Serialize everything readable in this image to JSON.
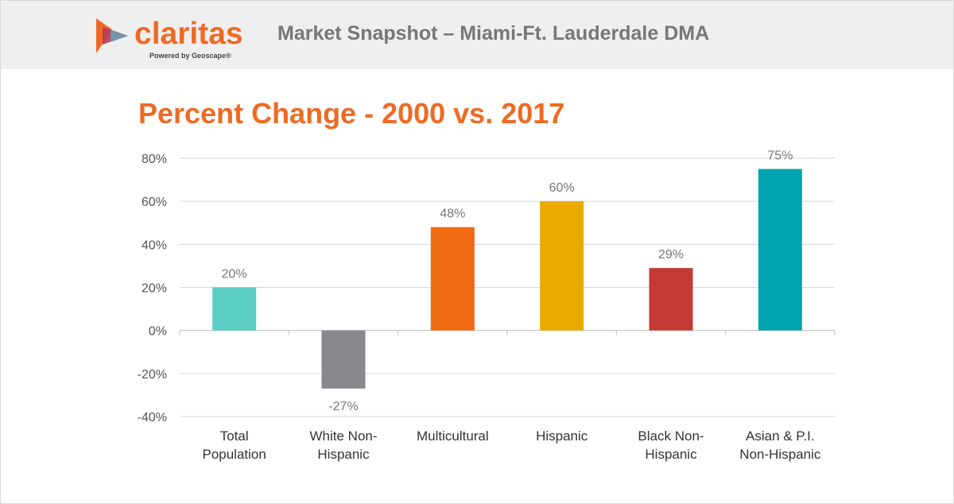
{
  "header": {
    "logo_text": "claritas",
    "logo_tagline": "Powered by Geoscape®",
    "title": "Market Snapshot – Miami-Ft. Lauderdale DMA"
  },
  "colors": {
    "brand_orange": "#ee6a24",
    "header_bg": "#efefef"
  },
  "chart_data": {
    "type": "bar",
    "title": "Percent Change - 2000 vs. 2017",
    "xlabel": "",
    "ylabel": "",
    "ylim": [
      -40,
      80
    ],
    "yticks": [
      80,
      60,
      40,
      20,
      0,
      -20,
      -40
    ],
    "ytick_labels": [
      "80%",
      "60%",
      "40%",
      "20%",
      "0%",
      "-20%",
      "-40%"
    ],
    "grid": true,
    "categories": [
      [
        "Total",
        "Population"
      ],
      [
        "White Non-",
        "Hispanic"
      ],
      [
        "Multicultural"
      ],
      [
        "Hispanic"
      ],
      [
        "Black Non-",
        "Hispanic"
      ],
      [
        "Asian & P.I.",
        "Non-Hispanic"
      ]
    ],
    "values": [
      20,
      -27,
      48,
      60,
      29,
      75
    ],
    "value_labels": [
      "20%",
      "-27%",
      "48%",
      "60%",
      "29%",
      "75%"
    ],
    "bar_colors": [
      "#5ccdc4",
      "#87898c",
      "#f06a12",
      "#eaab00",
      "#c23b35",
      "#00a4ae"
    ]
  }
}
